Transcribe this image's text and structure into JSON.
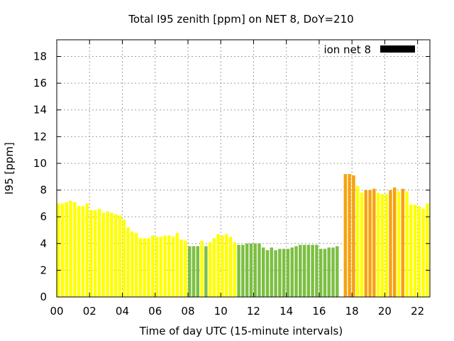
{
  "chart_data": {
    "type": "bar",
    "title": "Total I95 zenith [ppm] on NET 8, DoY=210",
    "xlabel": "Time of day UTC (15-minute intervals)",
    "ylabel": "I95 [ppm]",
    "xlim": [
      0,
      22.75
    ],
    "ylim": [
      0,
      19.25
    ],
    "x_ticks": [
      0,
      2,
      4,
      6,
      8,
      10,
      12,
      14,
      16,
      18,
      20,
      22
    ],
    "x_tick_labels": [
      "00",
      "02",
      "04",
      "06",
      "08",
      "10",
      "12",
      "14",
      "16",
      "18",
      "20",
      "22"
    ],
    "y_ticks": [
      0,
      2,
      4,
      6,
      8,
      10,
      12,
      14,
      16,
      18
    ],
    "y_tick_labels": [
      "0",
      "2",
      "4",
      "6",
      "8",
      "10",
      "12",
      "14",
      "16",
      "18"
    ],
    "grid": true,
    "legend": {
      "position": "top-right",
      "entries": [
        {
          "label": "ion net 8",
          "color": "#000000"
        }
      ]
    },
    "bar_interval_hours": 0.25,
    "colors": {
      "yellow": "#ffff00",
      "green": "#7cbf42",
      "orange": "#f7a10e",
      "grid": "#a0a0a0",
      "axis": "#000000"
    },
    "series": [
      {
        "name": "ion net 8",
        "points": [
          {
            "x": 0.0,
            "y": 7.0,
            "color": "yellow"
          },
          {
            "x": 0.25,
            "y": 7.0,
            "color": "yellow"
          },
          {
            "x": 0.5,
            "y": 7.1,
            "color": "yellow"
          },
          {
            "x": 0.75,
            "y": 7.2,
            "color": "yellow"
          },
          {
            "x": 1.0,
            "y": 7.1,
            "color": "yellow"
          },
          {
            "x": 1.25,
            "y": 6.8,
            "color": "yellow"
          },
          {
            "x": 1.5,
            "y": 6.8,
            "color": "yellow"
          },
          {
            "x": 1.75,
            "y": 7.0,
            "color": "yellow"
          },
          {
            "x": 2.0,
            "y": 6.5,
            "color": "yellow"
          },
          {
            "x": 2.25,
            "y": 6.5,
            "color": "yellow"
          },
          {
            "x": 2.5,
            "y": 6.6,
            "color": "yellow"
          },
          {
            "x": 2.75,
            "y": 6.3,
            "color": "yellow"
          },
          {
            "x": 3.0,
            "y": 6.4,
            "color": "yellow"
          },
          {
            "x": 3.25,
            "y": 6.3,
            "color": "yellow"
          },
          {
            "x": 3.5,
            "y": 6.2,
            "color": "yellow"
          },
          {
            "x": 3.75,
            "y": 6.1,
            "color": "yellow"
          },
          {
            "x": 4.0,
            "y": 5.8,
            "color": "yellow"
          },
          {
            "x": 4.25,
            "y": 5.2,
            "color": "yellow"
          },
          {
            "x": 4.5,
            "y": 4.9,
            "color": "yellow"
          },
          {
            "x": 4.75,
            "y": 4.8,
            "color": "yellow"
          },
          {
            "x": 5.0,
            "y": 4.4,
            "color": "yellow"
          },
          {
            "x": 5.25,
            "y": 4.4,
            "color": "yellow"
          },
          {
            "x": 5.5,
            "y": 4.4,
            "color": "yellow"
          },
          {
            "x": 5.75,
            "y": 4.6,
            "color": "yellow"
          },
          {
            "x": 6.0,
            "y": 4.5,
            "color": "yellow"
          },
          {
            "x": 6.25,
            "y": 4.5,
            "color": "yellow"
          },
          {
            "x": 6.5,
            "y": 4.6,
            "color": "yellow"
          },
          {
            "x": 6.75,
            "y": 4.6,
            "color": "yellow"
          },
          {
            "x": 7.0,
            "y": 4.5,
            "color": "yellow"
          },
          {
            "x": 7.25,
            "y": 4.8,
            "color": "yellow"
          },
          {
            "x": 7.5,
            "y": 4.3,
            "color": "yellow"
          },
          {
            "x": 7.75,
            "y": 4.2,
            "color": "yellow"
          },
          {
            "x": 8.0,
            "y": 3.8,
            "color": "green"
          },
          {
            "x": 8.25,
            "y": 3.8,
            "color": "green"
          },
          {
            "x": 8.5,
            "y": 3.8,
            "color": "green"
          },
          {
            "x": 8.75,
            "y": 4.2,
            "color": "yellow"
          },
          {
            "x": 9.0,
            "y": 3.8,
            "color": "green"
          },
          {
            "x": 9.25,
            "y": 4.1,
            "color": "yellow"
          },
          {
            "x": 9.5,
            "y": 4.4,
            "color": "yellow"
          },
          {
            "x": 9.75,
            "y": 4.7,
            "color": "yellow"
          },
          {
            "x": 10.0,
            "y": 4.6,
            "color": "yellow"
          },
          {
            "x": 10.25,
            "y": 4.7,
            "color": "yellow"
          },
          {
            "x": 10.5,
            "y": 4.5,
            "color": "yellow"
          },
          {
            "x": 10.75,
            "y": 4.1,
            "color": "yellow"
          },
          {
            "x": 11.0,
            "y": 3.9,
            "color": "green"
          },
          {
            "x": 11.25,
            "y": 3.9,
            "color": "green"
          },
          {
            "x": 11.5,
            "y": 4.0,
            "color": "green"
          },
          {
            "x": 11.75,
            "y": 4.0,
            "color": "green"
          },
          {
            "x": 12.0,
            "y": 4.0,
            "color": "green"
          },
          {
            "x": 12.25,
            "y": 4.0,
            "color": "green"
          },
          {
            "x": 12.5,
            "y": 3.7,
            "color": "green"
          },
          {
            "x": 12.75,
            "y": 3.5,
            "color": "green"
          },
          {
            "x": 13.0,
            "y": 3.7,
            "color": "green"
          },
          {
            "x": 13.25,
            "y": 3.5,
            "color": "green"
          },
          {
            "x": 13.5,
            "y": 3.6,
            "color": "green"
          },
          {
            "x": 13.75,
            "y": 3.6,
            "color": "green"
          },
          {
            "x": 14.0,
            "y": 3.6,
            "color": "green"
          },
          {
            "x": 14.25,
            "y": 3.7,
            "color": "green"
          },
          {
            "x": 14.5,
            "y": 3.8,
            "color": "green"
          },
          {
            "x": 14.75,
            "y": 3.9,
            "color": "green"
          },
          {
            "x": 15.0,
            "y": 3.9,
            "color": "green"
          },
          {
            "x": 15.25,
            "y": 3.9,
            "color": "green"
          },
          {
            "x": 15.5,
            "y": 3.9,
            "color": "green"
          },
          {
            "x": 15.75,
            "y": 3.9,
            "color": "green"
          },
          {
            "x": 16.0,
            "y": 3.6,
            "color": "green"
          },
          {
            "x": 16.25,
            "y": 3.6,
            "color": "green"
          },
          {
            "x": 16.5,
            "y": 3.7,
            "color": "green"
          },
          {
            "x": 16.75,
            "y": 3.7,
            "color": "green"
          },
          {
            "x": 17.0,
            "y": 3.8,
            "color": "green"
          },
          {
            "x": 17.5,
            "y": 9.2,
            "color": "orange"
          },
          {
            "x": 17.75,
            "y": 9.2,
            "color": "orange"
          },
          {
            "x": 18.0,
            "y": 9.1,
            "color": "orange"
          },
          {
            "x": 18.25,
            "y": 8.3,
            "color": "yellow"
          },
          {
            "x": 18.5,
            "y": 7.8,
            "color": "yellow"
          },
          {
            "x": 18.75,
            "y": 8.0,
            "color": "orange"
          },
          {
            "x": 19.0,
            "y": 8.0,
            "color": "orange"
          },
          {
            "x": 19.25,
            "y": 8.1,
            "color": "orange"
          },
          {
            "x": 19.5,
            "y": 7.8,
            "color": "yellow"
          },
          {
            "x": 19.75,
            "y": 7.7,
            "color": "yellow"
          },
          {
            "x": 20.0,
            "y": 7.7,
            "color": "yellow"
          },
          {
            "x": 20.25,
            "y": 8.0,
            "color": "orange"
          },
          {
            "x": 20.5,
            "y": 8.2,
            "color": "orange"
          },
          {
            "x": 20.75,
            "y": 7.9,
            "color": "yellow"
          },
          {
            "x": 21.0,
            "y": 8.1,
            "color": "orange"
          },
          {
            "x": 21.25,
            "y": 7.9,
            "color": "yellow"
          },
          {
            "x": 21.5,
            "y": 6.9,
            "color": "yellow"
          },
          {
            "x": 21.75,
            "y": 6.9,
            "color": "yellow"
          },
          {
            "x": 22.0,
            "y": 6.8,
            "color": "yellow"
          },
          {
            "x": 22.25,
            "y": 6.6,
            "color": "yellow"
          },
          {
            "x": 22.5,
            "y": 7.0,
            "color": "yellow"
          }
        ]
      }
    ]
  }
}
